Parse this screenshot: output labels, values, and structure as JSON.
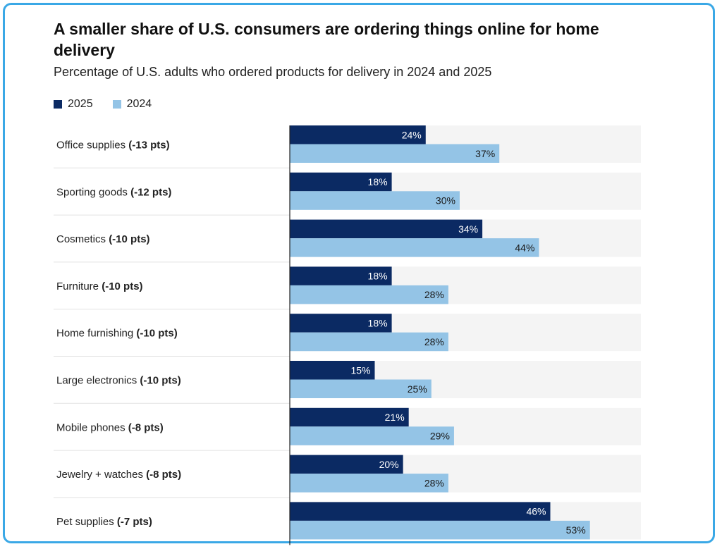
{
  "chart_data": {
    "type": "bar",
    "orientation": "horizontal",
    "title": "A smaller share of U.S. consumers are ordering things online for home delivery",
    "subtitle": "Percentage of U.S. adults who ordered products for delivery in 2024 and 2025",
    "legend_position": "top-left",
    "xlim": [
      0,
      62
    ],
    "categories": [
      {
        "name": "Office supplies",
        "change": "(-13 pts)"
      },
      {
        "name": "Sporting goods",
        "change": "(-12 pts)"
      },
      {
        "name": "Cosmetics",
        "change": "(-10 pts)"
      },
      {
        "name": "Furniture",
        "change": "(-10 pts)"
      },
      {
        "name": "Home furnishing",
        "change": "(-10 pts)"
      },
      {
        "name": "Large electronics",
        "change": "(-10 pts)"
      },
      {
        "name": "Mobile phones",
        "change": "(-8 pts)"
      },
      {
        "name": "Jewelry + watches",
        "change": "(-8 pts)"
      },
      {
        "name": "Pet supplies",
        "change": "(-7 pts)"
      }
    ],
    "series": [
      {
        "name": "2025",
        "color": "#0b2a63",
        "label_color": "#ffffff",
        "values": [
          24,
          18,
          34,
          18,
          18,
          15,
          21,
          20,
          46
        ]
      },
      {
        "name": "2024",
        "color": "#94c4e6",
        "label_color": "#1a1a1a",
        "values": [
          37,
          30,
          44,
          28,
          28,
          25,
          29,
          28,
          53
        ]
      }
    ],
    "value_suffix": "%",
    "track_color": "#f4f4f4"
  }
}
